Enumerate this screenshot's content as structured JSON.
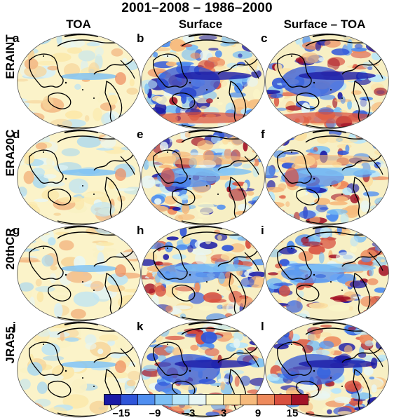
{
  "figure": {
    "title": "2001–2008 – 1986–2000",
    "columns": [
      "TOA",
      "Surface",
      "Surface – TOA"
    ],
    "rows": [
      "ERAINT",
      "ERA20C",
      "20thCR",
      "JRA55"
    ],
    "panel_letters": [
      "a",
      "b",
      "c",
      "d",
      "e",
      "f",
      "g",
      "h",
      "i",
      "j",
      "k",
      "l"
    ]
  },
  "colorbar": {
    "ticks": [
      "–15",
      "–9",
      "–3",
      "3",
      "9",
      "15"
    ],
    "colors": [
      "#1a1aa6",
      "#2f55d9",
      "#4f8ef0",
      "#7cc0f5",
      "#b8e6fa",
      "#e8f6f5",
      "#fbf6c8",
      "#fbe0a2",
      "#f6ba7c",
      "#ee8a5c",
      "#d8503f",
      "#a31226"
    ]
  }
}
